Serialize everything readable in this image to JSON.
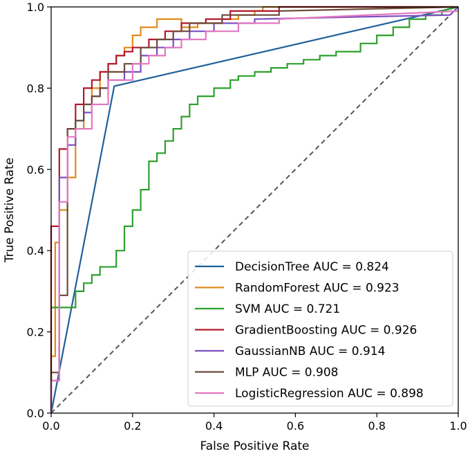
{
  "chart_data": {
    "type": "line",
    "xlabel": "False Positive Rate",
    "ylabel": "True Positive Rate",
    "xlim": [
      0,
      1
    ],
    "ylim": [
      0,
      1
    ],
    "xticks": [
      "0.0",
      "0.2",
      "0.4",
      "0.6",
      "0.8",
      "1.0"
    ],
    "yticks": [
      "0.0",
      "0.2",
      "0.4",
      "0.6",
      "0.8",
      "1.0"
    ],
    "grid": false,
    "legend_position": "bottom-right",
    "reference_line": {
      "x": [
        0,
        1
      ],
      "y": [
        0,
        1
      ],
      "style": "dashed",
      "color": "#555555"
    },
    "series": [
      {
        "name": "DecisionTree AUC = 0.824",
        "color": "#1f5f9a",
        "x": [
          0,
          0.155,
          1
        ],
        "y": [
          0,
          0.805,
          1
        ]
      },
      {
        "name": "RandomForest AUC = 0.923",
        "color": "#e08a1a",
        "x": [
          0,
          0,
          0.01,
          0.01,
          0.02,
          0.02,
          0.04,
          0.04,
          0.06,
          0.06,
          0.08,
          0.08,
          0.1,
          0.1,
          0.12,
          0.12,
          0.14,
          0.14,
          0.16,
          0.16,
          0.18,
          0.18,
          0.2,
          0.2,
          0.22,
          0.22,
          0.26,
          0.26,
          0.32,
          0.32,
          0.36,
          0.36,
          0.42,
          0.42,
          0.46,
          0.46,
          0.5,
          0.5,
          0.52,
          0.52,
          1
        ],
        "y": [
          0,
          0.14,
          0.14,
          0.42,
          0.42,
          0.5,
          0.5,
          0.58,
          0.58,
          0.7,
          0.7,
          0.76,
          0.76,
          0.8,
          0.8,
          0.84,
          0.84,
          0.86,
          0.86,
          0.88,
          0.88,
          0.9,
          0.9,
          0.93,
          0.93,
          0.95,
          0.95,
          0.97,
          0.97,
          0.95,
          0.95,
          0.96,
          0.96,
          0.97,
          0.97,
          0.98,
          0.98,
          0.99,
          0.99,
          1.0,
          1.0
        ]
      },
      {
        "name": "SVM AUC = 0.721",
        "color": "#2ca02c",
        "x": [
          0,
          0,
          0.06,
          0.06,
          0.08,
          0.08,
          0.1,
          0.1,
          0.12,
          0.12,
          0.16,
          0.16,
          0.18,
          0.18,
          0.2,
          0.2,
          0.22,
          0.22,
          0.24,
          0.24,
          0.26,
          0.26,
          0.28,
          0.28,
          0.3,
          0.3,
          0.32,
          0.32,
          0.34,
          0.34,
          0.36,
          0.36,
          0.4,
          0.4,
          0.44,
          0.44,
          0.46,
          0.46,
          0.5,
          0.5,
          0.54,
          0.54,
          0.58,
          0.58,
          0.62,
          0.62,
          0.66,
          0.66,
          0.7,
          0.7,
          0.76,
          0.76,
          0.8,
          0.8,
          0.84,
          0.84,
          0.88,
          0.88,
          0.92,
          0.92,
          0.96,
          0.96,
          1
        ],
        "y": [
          0,
          0.26,
          0.26,
          0.3,
          0.3,
          0.32,
          0.32,
          0.34,
          0.34,
          0.36,
          0.36,
          0.4,
          0.4,
          0.46,
          0.46,
          0.5,
          0.5,
          0.55,
          0.55,
          0.62,
          0.62,
          0.64,
          0.64,
          0.67,
          0.67,
          0.7,
          0.7,
          0.73,
          0.73,
          0.76,
          0.76,
          0.78,
          0.78,
          0.8,
          0.8,
          0.82,
          0.82,
          0.83,
          0.83,
          0.84,
          0.84,
          0.85,
          0.85,
          0.86,
          0.86,
          0.87,
          0.87,
          0.88,
          0.88,
          0.89,
          0.89,
          0.91,
          0.91,
          0.93,
          0.93,
          0.95,
          0.95,
          0.97,
          0.97,
          0.98,
          0.98,
          0.99,
          1.0
        ]
      },
      {
        "name": "GradientBoosting AUC = 0.926",
        "color": "#b2182b",
        "x": [
          0,
          0,
          0.02,
          0.02,
          0.04,
          0.04,
          0.06,
          0.06,
          0.08,
          0.08,
          0.1,
          0.1,
          0.12,
          0.12,
          0.14,
          0.14,
          0.16,
          0.16,
          0.18,
          0.18,
          0.2,
          0.2,
          0.24,
          0.24,
          0.28,
          0.28,
          0.32,
          0.32,
          0.38,
          0.38,
          0.44,
          0.44,
          0.56,
          0.56,
          1
        ],
        "y": [
          0,
          0.46,
          0.46,
          0.65,
          0.65,
          0.7,
          0.7,
          0.76,
          0.76,
          0.8,
          0.8,
          0.82,
          0.82,
          0.84,
          0.84,
          0.86,
          0.86,
          0.88,
          0.88,
          0.89,
          0.89,
          0.9,
          0.9,
          0.92,
          0.92,
          0.94,
          0.94,
          0.96,
          0.96,
          0.97,
          0.97,
          0.99,
          0.99,
          1.0,
          1.0
        ]
      },
      {
        "name": "GaussianNB AUC = 0.914",
        "color": "#7b4fbf",
        "x": [
          0,
          0,
          0.02,
          0.02,
          0.04,
          0.04,
          0.06,
          0.06,
          0.08,
          0.08,
          0.1,
          0.1,
          0.12,
          0.12,
          0.14,
          0.14,
          0.18,
          0.18,
          0.22,
          0.22,
          0.26,
          0.26,
          0.3,
          0.3,
          0.34,
          0.34,
          0.4,
          0.4,
          0.5,
          0.5,
          0.98,
          1
        ],
        "y": [
          0,
          0.08,
          0.08,
          0.58,
          0.58,
          0.66,
          0.66,
          0.72,
          0.72,
          0.74,
          0.74,
          0.78,
          0.78,
          0.8,
          0.8,
          0.82,
          0.82,
          0.84,
          0.84,
          0.88,
          0.88,
          0.9,
          0.9,
          0.92,
          0.92,
          0.94,
          0.94,
          0.96,
          0.96,
          0.97,
          0.98,
          1.0
        ]
      },
      {
        "name": "MLP AUC = 0.908",
        "color": "#6b4a3a",
        "x": [
          0,
          0,
          0.02,
          0.02,
          0.04,
          0.04,
          0.06,
          0.06,
          0.08,
          0.08,
          0.1,
          0.1,
          0.12,
          0.12,
          0.14,
          0.14,
          0.18,
          0.18,
          0.22,
          0.22,
          0.26,
          0.26,
          0.3,
          0.3,
          0.34,
          0.34,
          0.42,
          0.42,
          0.56,
          0.56,
          1
        ],
        "y": [
          0,
          0.1,
          0.1,
          0.29,
          0.29,
          0.7,
          0.7,
          0.72,
          0.72,
          0.76,
          0.76,
          0.78,
          0.78,
          0.8,
          0.8,
          0.84,
          0.84,
          0.86,
          0.86,
          0.9,
          0.9,
          0.92,
          0.92,
          0.94,
          0.94,
          0.96,
          0.96,
          0.98,
          0.98,
          0.99,
          1.0
        ]
      },
      {
        "name": "LogisticRegression AUC = 0.898",
        "color": "#e377c2",
        "x": [
          0,
          0,
          0.02,
          0.02,
          0.04,
          0.04,
          0.06,
          0.06,
          0.1,
          0.1,
          0.14,
          0.14,
          0.2,
          0.2,
          0.24,
          0.24,
          0.28,
          0.28,
          0.32,
          0.32,
          0.38,
          0.38,
          0.46,
          0.46,
          0.56,
          0.56,
          1
        ],
        "y": [
          0,
          0.08,
          0.08,
          0.52,
          0.52,
          0.68,
          0.68,
          0.7,
          0.7,
          0.76,
          0.76,
          0.82,
          0.82,
          0.86,
          0.86,
          0.88,
          0.88,
          0.9,
          0.9,
          0.92,
          0.92,
          0.94,
          0.94,
          0.96,
          0.96,
          0.97,
          0.99
        ]
      }
    ]
  }
}
